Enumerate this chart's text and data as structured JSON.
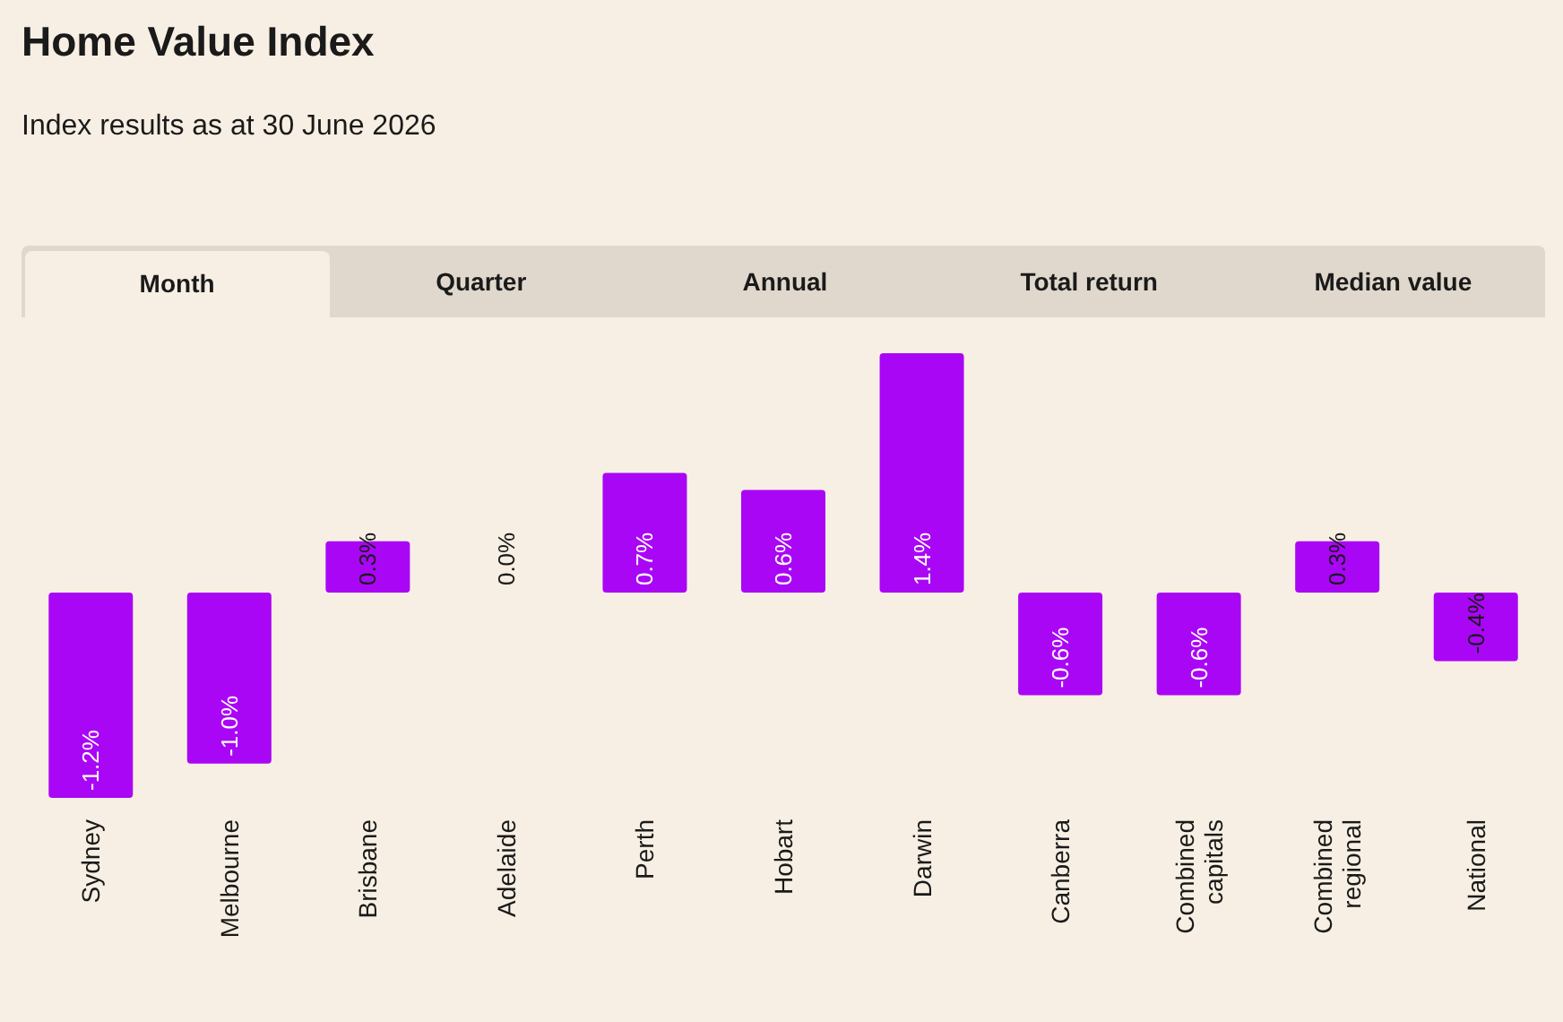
{
  "chart_data": {
    "type": "bar",
    "title": "Home Value Index",
    "subtitle": "Index results as at 30 June 2026",
    "annotations": [
      "Month",
      "Quarter",
      "Annual",
      "Total return",
      "Median value"
    ],
    "categories": [
      "Sydney",
      "Melbourne",
      "Brisbane",
      "Adelaide",
      "Perth",
      "Hobart",
      "Darwin",
      "Canberra",
      "Combined capitals",
      "Combined regional",
      "National"
    ],
    "values": [
      -1.2,
      -1.0,
      0.3,
      0.0,
      0.7,
      0.6,
      1.4,
      -0.6,
      -0.6,
      0.3,
      -0.4
    ],
    "value_labels": [
      "-1.2%",
      "-1.0%",
      "0.3%",
      "0.0%",
      "0.7%",
      "0.6%",
      "1.4%",
      "-0.6%",
      "-0.6%",
      "0.3%",
      "-0.4%"
    ],
    "color": "#aa06f6"
  }
}
